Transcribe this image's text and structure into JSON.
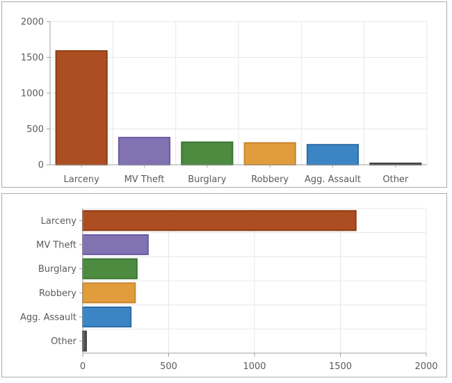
{
  "chart_data": [
    {
      "type": "bar",
      "orientation": "vertical",
      "title": "",
      "xlabel": "",
      "ylabel": "",
      "categories": [
        "Larceny",
        "MV Theft",
        "Burglary",
        "Robbery",
        "Agg. Assault",
        "Other"
      ],
      "values": [
        1590,
        380,
        315,
        305,
        280,
        20
      ],
      "value_axis": {
        "min": 0,
        "max": 2000,
        "ticks": [
          0,
          500,
          1000,
          1500,
          2000
        ]
      },
      "grid": true,
      "legend": "none"
    },
    {
      "type": "bar",
      "orientation": "horizontal",
      "title": "",
      "xlabel": "",
      "ylabel": "",
      "categories": [
        "Larceny",
        "MV Theft",
        "Burglary",
        "Robbery",
        "Agg. Assault",
        "Other"
      ],
      "values": [
        1590,
        380,
        315,
        305,
        280,
        20
      ],
      "value_axis": {
        "min": 0,
        "max": 2000,
        "ticks": [
          0,
          500,
          1000,
          1500,
          2000
        ]
      },
      "grid": true,
      "legend": "none"
    }
  ],
  "colors": {
    "bar_fills": [
      "#AC4E21",
      "#8173B2",
      "#4D8B40",
      "#E19D3C",
      "#3C85C5",
      "#57585A"
    ],
    "bar_strokes": [
      "#8E3B13",
      "#6A5CA5",
      "#3A7330",
      "#C8862B",
      "#2C6CA5",
      "#3F4042"
    ],
    "grid": "#E7E7E7",
    "axis": "#A0A0A0",
    "text": "#5A5A5A",
    "panel_border": "#ABABAB",
    "background": "#FFFFFF"
  }
}
